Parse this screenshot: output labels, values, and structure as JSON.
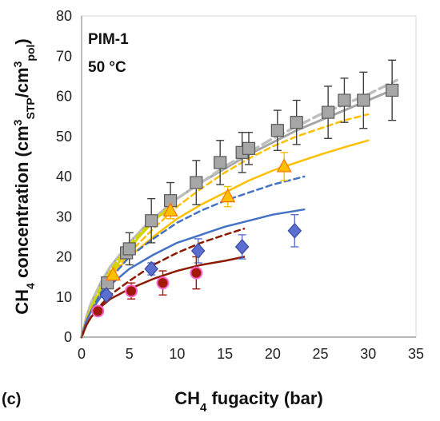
{
  "chart_data": {
    "type": "scatter",
    "panel_label": "(c)",
    "annotation_lines": [
      "PIM-1",
      "50 °C"
    ],
    "xlabel": {
      "base": "CH",
      "sub": "4",
      "rest": " fugacity (bar)"
    },
    "ylabel": {
      "base": "CH",
      "sub1": "4",
      "mid1": " concentration (cm",
      "sup1": "3",
      "sub2": "STP",
      "mid2": "/cm",
      "sup2": "3",
      "sub3": "pol",
      "end": ")"
    },
    "xlim": [
      0,
      35
    ],
    "ylim": [
      0,
      80
    ],
    "xticks": [
      0,
      5,
      10,
      15,
      20,
      25,
      30,
      35
    ],
    "yticks": [
      0,
      10,
      20,
      30,
      40,
      50,
      60,
      70,
      80
    ],
    "grid": false,
    "colors": {
      "gray": "#a6a6a6",
      "gray_dashed": "#bfbfbf",
      "orange": "#ffc000",
      "yellow_green": "#d4d400",
      "blue": "#4472c4",
      "blue_marker": "#5b6fd0",
      "darkred": "#8b1a00",
      "darkred_marker": "#a0190b",
      "pink_outline": "#ff66cc"
    },
    "series": [
      {
        "marker": "square",
        "color": "#a6a6a6",
        "points": [
          {
            "x": 2.7,
            "y": 13.5,
            "err": 0
          },
          {
            "x": 4.7,
            "y": 21.0,
            "err": 0
          },
          {
            "x": 5.0,
            "y": 22.0,
            "err": 4.0
          },
          {
            "x": 7.3,
            "y": 29.0,
            "err": 5.5
          },
          {
            "x": 9.3,
            "y": 34.0,
            "err": 4.5
          },
          {
            "x": 12.0,
            "y": 38.5,
            "err": 5.5
          },
          {
            "x": 14.5,
            "y": 43.5,
            "err": 5.5
          },
          {
            "x": 16.8,
            "y": 46.0,
            "err": 5.0
          },
          {
            "x": 17.5,
            "y": 47.0,
            "err": 4.0
          },
          {
            "x": 20.5,
            "y": 51.5,
            "err": 5.0
          },
          {
            "x": 22.5,
            "y": 53.5,
            "err": 5.5
          },
          {
            "x": 25.8,
            "y": 56.0,
            "err": 6.5
          },
          {
            "x": 27.5,
            "y": 59.0,
            "err": 5.5
          },
          {
            "x": 29.5,
            "y": 59.0,
            "err": 7.0
          },
          {
            "x": 32.5,
            "y": 61.5,
            "err": 7.5
          }
        ]
      },
      {
        "marker": "triangle",
        "color": "#ffc000",
        "points": [
          {
            "x": 3.3,
            "y": 15.5,
            "err": 0
          },
          {
            "x": 9.3,
            "y": 31.5,
            "err": 2.0
          },
          {
            "x": 15.3,
            "y": 35.0,
            "err": 2.5
          },
          {
            "x": 21.2,
            "y": 42.5,
            "err": 3.5
          }
        ]
      },
      {
        "marker": "diamond",
        "color": "#5b6fd0",
        "points": [
          {
            "x": 2.6,
            "y": 10.5,
            "err": 0
          },
          {
            "x": 7.3,
            "y": 17.0,
            "err": 1.5
          },
          {
            "x": 12.2,
            "y": 21.5,
            "err": 3.0
          },
          {
            "x": 16.8,
            "y": 22.5,
            "err": 3.0
          },
          {
            "x": 22.3,
            "y": 26.5,
            "err": 4.0
          }
        ]
      },
      {
        "marker": "circle",
        "color": "#a0190b",
        "points": [
          {
            "x": 1.7,
            "y": 6.5,
            "err": 0
          },
          {
            "x": 5.2,
            "y": 11.5,
            "err": 2.0
          },
          {
            "x": 8.5,
            "y": 13.5,
            "err": 3.0
          },
          {
            "x": 12.0,
            "y": 16.0,
            "err": 4.0
          }
        ]
      }
    ],
    "curves": [
      {
        "color": "#a6a6a6",
        "dash": "none",
        "width": 3,
        "points": [
          [
            0,
            0
          ],
          [
            0.5,
            5
          ],
          [
            1,
            8.5
          ],
          [
            2,
            13.5
          ],
          [
            3,
            17.5
          ],
          [
            5,
            23.5
          ],
          [
            7,
            28.5
          ],
          [
            10,
            34.5
          ],
          [
            12.5,
            38.5
          ],
          [
            15,
            42
          ],
          [
            17.5,
            45.5
          ],
          [
            20,
            48.5
          ],
          [
            22.5,
            51.5
          ],
          [
            25,
            54
          ],
          [
            27.5,
            56.5
          ],
          [
            30,
            59
          ],
          [
            33,
            62
          ]
        ]
      },
      {
        "color": "#bfbfbf",
        "dash": "12 6",
        "width": 3.5,
        "points": [
          [
            0,
            0
          ],
          [
            0.5,
            5
          ],
          [
            1,
            8.5
          ],
          [
            2,
            13.5
          ],
          [
            3,
            17.5
          ],
          [
            5,
            23.5
          ],
          [
            7,
            28.5
          ],
          [
            10,
            34.5
          ],
          [
            12.5,
            38.5
          ],
          [
            15,
            42.5
          ],
          [
            17.5,
            46
          ],
          [
            20,
            49.5
          ],
          [
            22.5,
            52.5
          ],
          [
            25,
            55.5
          ],
          [
            27.5,
            58
          ],
          [
            30,
            60.5
          ],
          [
            33,
            64
          ]
        ]
      },
      {
        "color": "#ffc000",
        "dash": "none",
        "width": 2.5,
        "points": [
          [
            0,
            0
          ],
          [
            0.5,
            4.5
          ],
          [
            1,
            7.5
          ],
          [
            2,
            11.5
          ],
          [
            3,
            15
          ],
          [
            5,
            20
          ],
          [
            7.5,
            25
          ],
          [
            10,
            29.5
          ],
          [
            12.5,
            33
          ],
          [
            15,
            36
          ],
          [
            17.5,
            39
          ],
          [
            20,
            41.5
          ],
          [
            22.5,
            43.5
          ],
          [
            25,
            45.5
          ],
          [
            27.5,
            47.3
          ],
          [
            30,
            49
          ]
        ]
      },
      {
        "color": "#ffc000",
        "dash": "7 5",
        "width": 2.5,
        "points": [
          [
            0,
            0
          ],
          [
            0.5,
            4.5
          ],
          [
            1,
            7.5
          ],
          [
            2,
            11.5
          ],
          [
            3,
            15
          ],
          [
            5,
            21
          ],
          [
            7.5,
            27
          ],
          [
            10,
            32.5
          ],
          [
            12.5,
            37
          ],
          [
            15,
            41
          ],
          [
            17.5,
            44.5
          ],
          [
            20,
            47.5
          ],
          [
            22.5,
            50
          ],
          [
            25,
            52
          ],
          [
            27.5,
            54
          ],
          [
            30,
            55.5
          ]
        ]
      },
      {
        "color": "#d4d400",
        "dash": "none",
        "width": 3,
        "points": [
          [
            0,
            0
          ],
          [
            1,
            7
          ],
          [
            2,
            11.5
          ],
          [
            3,
            15.5
          ],
          [
            4,
            19
          ],
          [
            5,
            22
          ],
          [
            6,
            25
          ],
          [
            7,
            27.5
          ],
          [
            8,
            30
          ],
          [
            9,
            31.5
          ]
        ]
      },
      {
        "color": "#d4d400",
        "dash": "7 5",
        "width": 3,
        "points": [
          [
            0,
            0
          ],
          [
            1,
            7.5
          ],
          [
            2,
            12.5
          ],
          [
            3,
            16.5
          ],
          [
            4,
            20
          ],
          [
            5,
            23
          ],
          [
            6,
            25.5
          ],
          [
            7,
            28
          ],
          [
            8,
            30
          ],
          [
            9,
            32
          ]
        ]
      },
      {
        "color": "#4472c4",
        "dash": "none",
        "width": 2.5,
        "points": [
          [
            0,
            0
          ],
          [
            0.5,
            4
          ],
          [
            1,
            6.5
          ],
          [
            2,
            10
          ],
          [
            3,
            13
          ],
          [
            5,
            17
          ],
          [
            7.5,
            20.5
          ],
          [
            10,
            23.5
          ],
          [
            12.5,
            25.5
          ],
          [
            15,
            27.5
          ],
          [
            17.5,
            29
          ],
          [
            20,
            30.5
          ],
          [
            23.3,
            31.8
          ]
        ]
      },
      {
        "color": "#4472c4",
        "dash": "7 5",
        "width": 2.5,
        "points": [
          [
            0,
            0
          ],
          [
            0.5,
            4
          ],
          [
            1,
            6.5
          ],
          [
            2,
            11
          ],
          [
            3,
            14.5
          ],
          [
            5,
            20
          ],
          [
            7.5,
            24.5
          ],
          [
            10,
            28.5
          ],
          [
            12.5,
            31.5
          ],
          [
            15,
            34
          ],
          [
            17.5,
            36
          ],
          [
            20,
            38
          ],
          [
            23.3,
            40
          ]
        ]
      },
      {
        "color": "#8b1a00",
        "dash": "none",
        "width": 2.5,
        "points": [
          [
            0,
            0
          ],
          [
            0.5,
            3
          ],
          [
            1,
            5
          ],
          [
            2,
            7.5
          ],
          [
            3,
            9.5
          ],
          [
            5,
            12
          ],
          [
            7.5,
            14.5
          ],
          [
            10,
            16.5
          ],
          [
            12.5,
            18
          ],
          [
            15,
            19
          ],
          [
            17,
            20
          ]
        ]
      },
      {
        "color": "#8b1a00",
        "dash": "7 5",
        "width": 2.5,
        "points": [
          [
            0,
            0
          ],
          [
            0.5,
            3
          ],
          [
            1,
            5
          ],
          [
            2,
            8
          ],
          [
            3,
            10.5
          ],
          [
            5,
            14
          ],
          [
            7.5,
            18
          ],
          [
            10,
            21
          ],
          [
            12.5,
            23.5
          ],
          [
            15,
            25.5
          ],
          [
            17,
            27
          ]
        ]
      }
    ]
  }
}
